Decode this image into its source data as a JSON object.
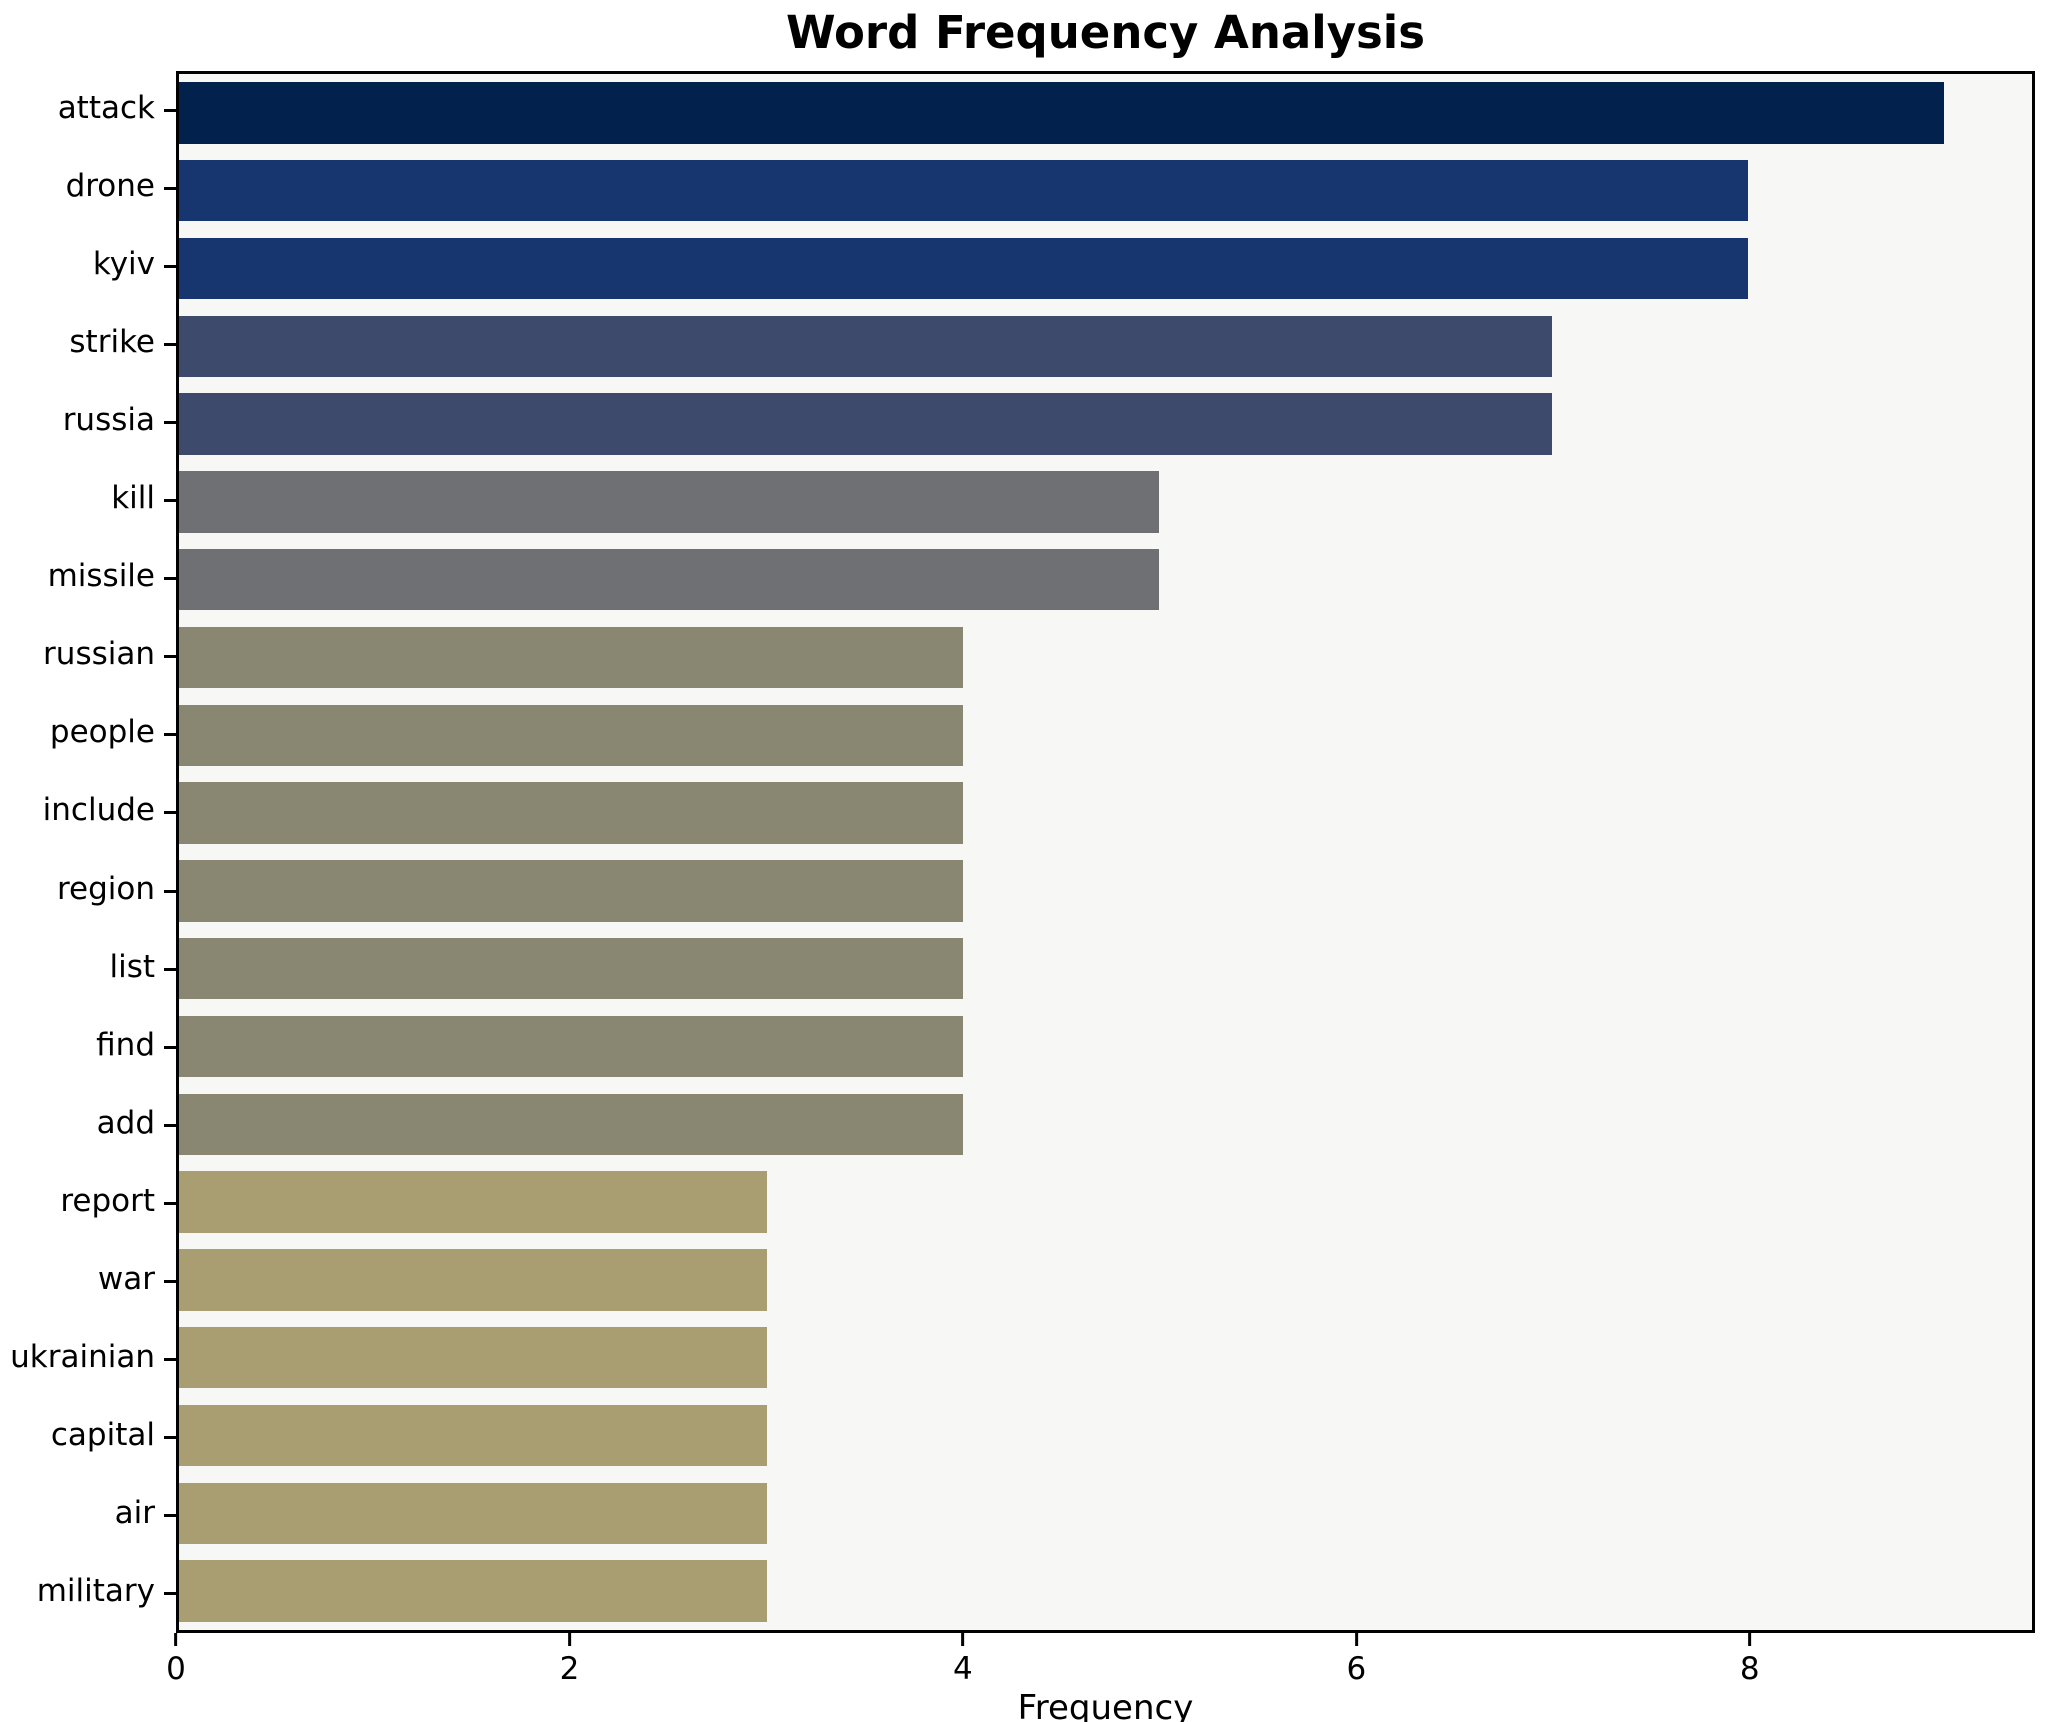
{
  "chart_data": {
    "type": "bar",
    "orientation": "horizontal",
    "title": "Word Frequency Analysis",
    "xlabel": "Frequency",
    "ylabel": "",
    "xlim": [
      0,
      9.45
    ],
    "xticks": [
      0,
      2,
      4,
      6,
      8
    ],
    "grid": false,
    "legend": "none",
    "categories": [
      "attack",
      "drone",
      "kyiv",
      "strike",
      "russia",
      "kill",
      "missile",
      "russian",
      "people",
      "include",
      "region",
      "list",
      "find",
      "add",
      "report",
      "war",
      "ukrainian",
      "capital",
      "air",
      "military"
    ],
    "values": [
      9,
      8,
      8,
      7,
      7,
      5,
      5,
      4,
      4,
      4,
      4,
      4,
      4,
      4,
      3,
      3,
      3,
      3,
      3,
      3
    ],
    "bar_colors": [
      "#02214d",
      "#17356f",
      "#17356f",
      "#3d4a6c",
      "#3d4a6c",
      "#6f7073",
      "#6f7073",
      "#898772",
      "#898772",
      "#898772",
      "#898772",
      "#898772",
      "#898772",
      "#898772",
      "#a89e72",
      "#a89e72",
      "#a89e72",
      "#a89e72",
      "#a89e72",
      "#a89e72"
    ]
  },
  "colors": {
    "plot_background": "#f7f7f6",
    "figure_background": "#ffffff",
    "spine": "#000000",
    "text": "#000000"
  }
}
